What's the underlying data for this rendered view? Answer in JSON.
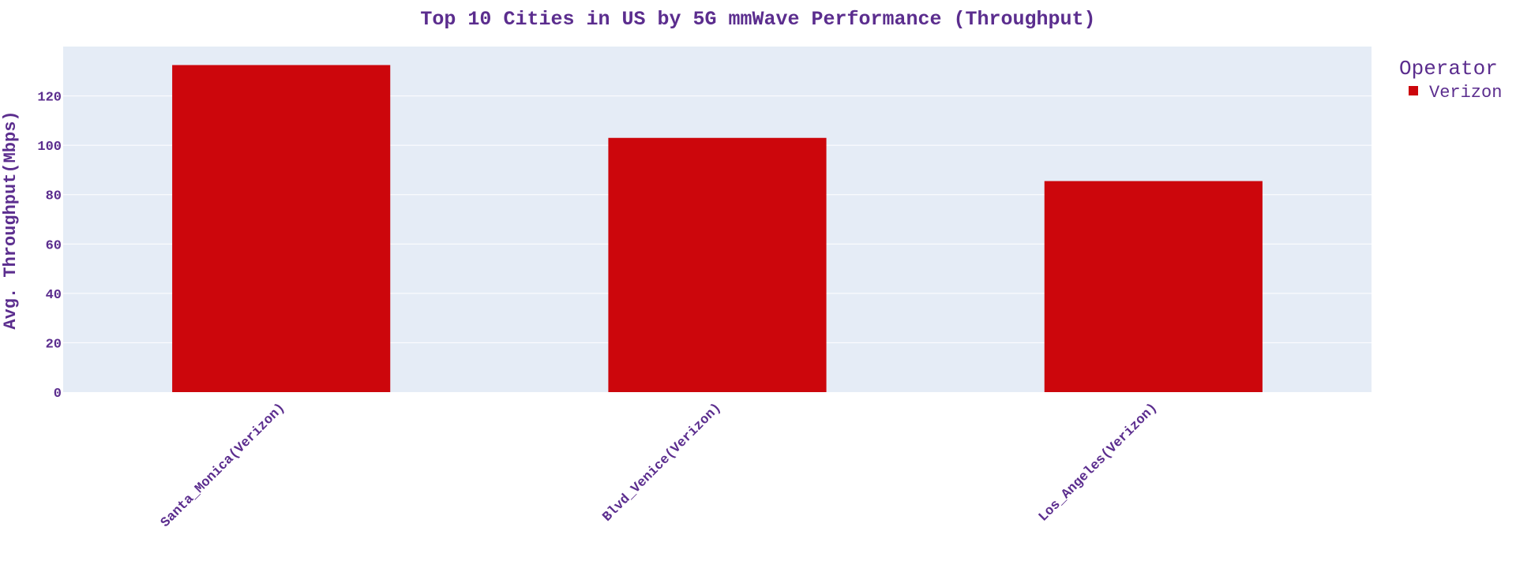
{
  "chart_data": {
    "type": "bar",
    "title": "Top 10 Cities in US by 5G mmWave Performance (Throughput)",
    "xlabel": "",
    "ylabel": "Avg. Throughput(Mbps)",
    "categories": [
      "Santa_Monica(Verizon)",
      "Blvd_Venice(Verizon)",
      "Los_Angeles(Verizon)"
    ],
    "series": [
      {
        "name": "Verizon",
        "values": [
          132.5,
          103,
          85.5
        ]
      }
    ],
    "ylim": [
      0,
      140
    ],
    "yticks": [
      0,
      20,
      40,
      60,
      80,
      100,
      120
    ],
    "ytick_labels": [
      "0",
      "20",
      "40",
      "60",
      "80",
      "100",
      "120"
    ],
    "legend": {
      "title": "Operator",
      "placement": "top-right"
    },
    "grid": true,
    "colors": {
      "text": "#5b2d8e",
      "plot_background": "#e5ecf6",
      "grid": "#ffffff",
      "bar": "#cc060c"
    }
  }
}
